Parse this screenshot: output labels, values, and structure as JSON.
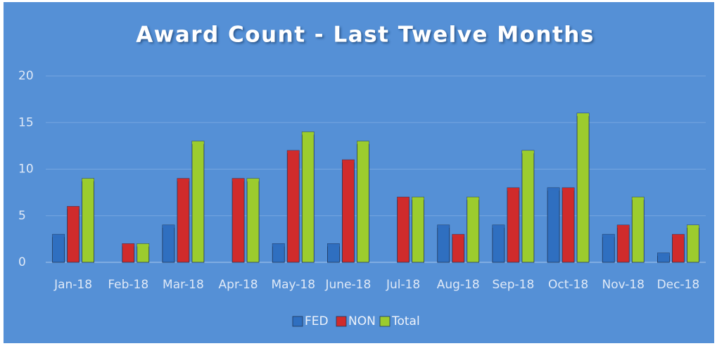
{
  "chart_data": {
    "type": "bar",
    "title": "Award Count - Last Twelve Months",
    "categories": [
      "Jan-18",
      "Feb-18",
      "Mar-18",
      "Apr-18",
      "May-18",
      "June-18",
      "Jul-18",
      "Aug-18",
      "Sep-18",
      "Oct-18",
      "Nov-18",
      "Dec-18"
    ],
    "series": [
      {
        "name": "FED",
        "color": "#2f6fc0",
        "values": [
          3,
          0,
          4,
          0,
          2,
          2,
          0,
          4,
          4,
          8,
          3,
          1
        ]
      },
      {
        "name": "NON",
        "color": "#d02b2b",
        "values": [
          6,
          2,
          9,
          9,
          12,
          11,
          7,
          3,
          8,
          8,
          4,
          3
        ]
      },
      {
        "name": "Total",
        "color": "#9ccc2e",
        "values": [
          9,
          2,
          13,
          9,
          14,
          13,
          7,
          7,
          12,
          16,
          7,
          4
        ]
      }
    ],
    "ylim": [
      0,
      20
    ],
    "yticks": [
      0,
      5,
      10,
      15,
      20
    ],
    "grid": true,
    "legend": "bottom"
  }
}
